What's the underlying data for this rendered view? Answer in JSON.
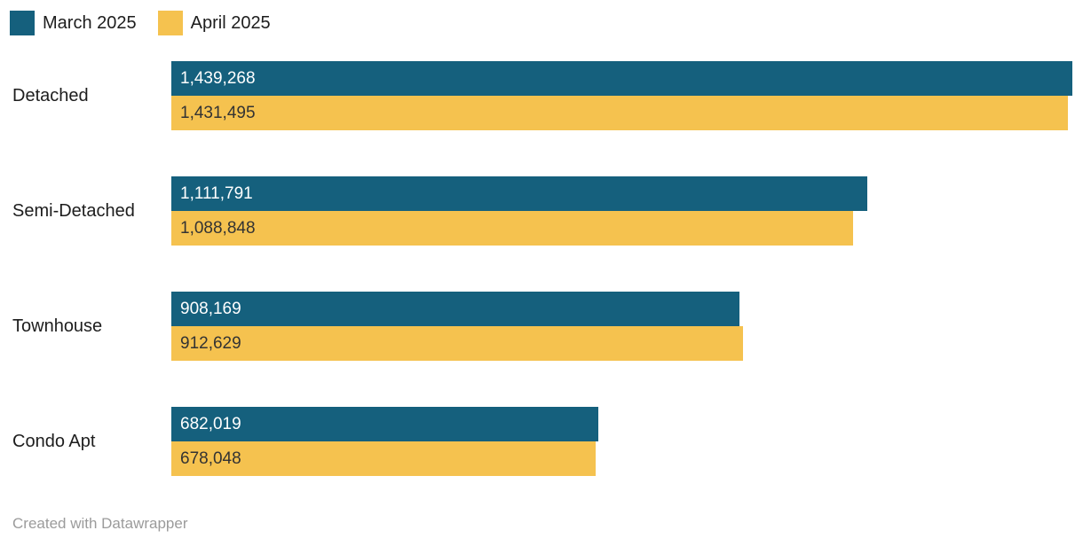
{
  "colors": {
    "background": "#ffffff",
    "march": "#15607d",
    "april": "#f5c24f",
    "label_text": "#1d1d1d",
    "value_on_march": "#ffffff",
    "value_on_april": "#333333",
    "footer_text": "#9b9b9b"
  },
  "legend": {
    "items": [
      {
        "label": "March 2025",
        "swatch": "teal-square-icon"
      },
      {
        "label": "April 2025",
        "swatch": "yellow-square-icon"
      }
    ]
  },
  "footer": {
    "text": "Created with Datawrapper"
  },
  "chart_data": {
    "type": "bar",
    "orientation": "horizontal",
    "title": "",
    "categories": [
      "Detached",
      "Semi-Detached",
      "Townhouse",
      "Condo Apt"
    ],
    "series": [
      {
        "name": "March 2025",
        "color": "#15607d",
        "values": [
          1439268,
          1111791,
          908169,
          682019
        ],
        "display_values": [
          "1,439,268",
          "1,111,791",
          "908,169",
          "682,019"
        ]
      },
      {
        "name": "April 2025",
        "color": "#f5c24f",
        "values": [
          1431495,
          1088848,
          912629,
          678048
        ],
        "display_values": [
          "1,431,495",
          "1,088,848",
          "912,629",
          "678,048"
        ]
      }
    ],
    "value_axis_max": 1439268,
    "value_axis_visible": false,
    "grid": false,
    "legend_position": "top-left",
    "value_labels": "inside-start",
    "attribution": "Created with Datawrapper"
  }
}
